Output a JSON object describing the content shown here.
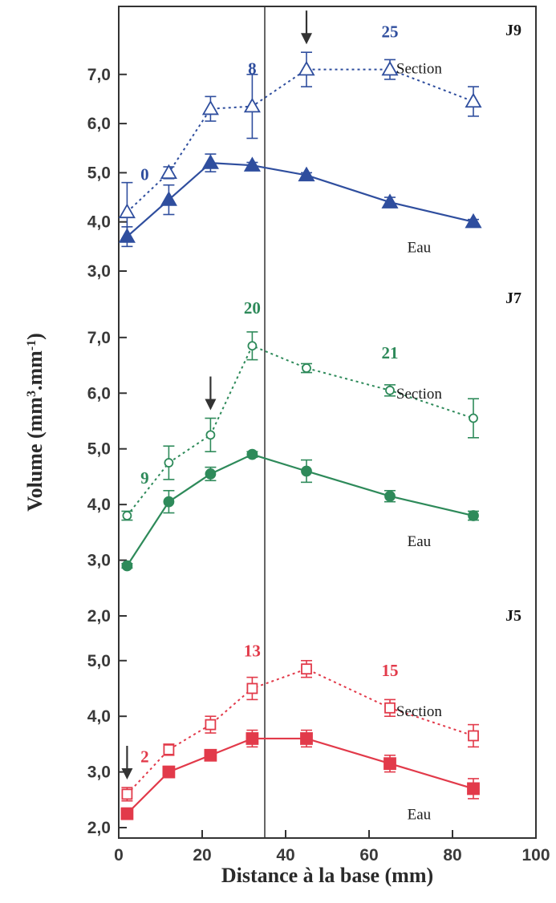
{
  "chart_data": {
    "type": "line",
    "xlabel": "Distance à la base (mm)",
    "ylabel": "Volume (mm³.mm⁻¹)",
    "ylabel_base": "Volume (mm",
    "ylabel_exp1": "3",
    "ylabel_mid": ".mm",
    "ylabel_exp2": "-1",
    "ylabel_end": ")",
    "xlim": [
      0,
      100
    ],
    "x_ticks": [
      "0",
      "20",
      "40",
      "60",
      "80",
      "100"
    ],
    "x_tick_values": [
      0,
      20,
      40,
      60,
      80,
      100
    ],
    "vertical_line_x": 35,
    "grid": false,
    "panels": [
      {
        "id": "J9",
        "color": "#2f4e9e",
        "ylim": [
          3.0,
          7.6
        ],
        "y_ticks": [
          "3,0",
          "4,0",
          "5,0",
          "6,0",
          "7,0"
        ],
        "y_tick_values": [
          3.0,
          4.0,
          5.0,
          6.0,
          7.0
        ],
        "series": [
          {
            "name": "Section",
            "marker": "triangle-open",
            "style": "dotted",
            "x": [
              2,
              12,
              22,
              32,
              45,
              65,
              85
            ],
            "y": [
              4.2,
              5.0,
              6.3,
              6.35,
              7.1,
              7.1,
              6.45
            ],
            "err": [
              0.6,
              0.12,
              0.25,
              0.65,
              0.35,
              0.2,
              0.3
            ]
          },
          {
            "name": "Eau",
            "marker": "triangle-filled",
            "style": "solid",
            "x": [
              2,
              12,
              22,
              32,
              45,
              65,
              85
            ],
            "y": [
              3.7,
              4.45,
              5.2,
              5.15,
              4.95,
              4.4,
              4.0
            ],
            "err": [
              0.2,
              0.3,
              0.18,
              0.06,
              0.05,
              0.1,
              0.05
            ]
          }
        ],
        "annotations": [
          {
            "text": "0",
            "x": 2,
            "y": 4.2
          },
          {
            "text": "8",
            "x": 32,
            "y": 6.35
          },
          {
            "text": "25",
            "x": 65,
            "y": 7.1
          }
        ],
        "arrow_x": 45
      },
      {
        "id": "J7",
        "color": "#2e8a5a",
        "ylim": [
          2.0,
          7.3
        ],
        "y_ticks": [
          "2,0",
          "3,0",
          "4,0",
          "5,0",
          "6,0",
          "7,0"
        ],
        "y_tick_values": [
          2.0,
          3.0,
          4.0,
          5.0,
          6.0,
          7.0
        ],
        "series": [
          {
            "name": "Section",
            "marker": "circle-open",
            "style": "dotted",
            "x": [
              2,
              12,
              22,
              32,
              45,
              65,
              85
            ],
            "y": [
              3.8,
              4.75,
              5.25,
              6.85,
              6.45,
              6.05,
              5.55
            ],
            "err": [
              0.08,
              0.3,
              0.3,
              0.25,
              0.08,
              0.1,
              0.35
            ]
          },
          {
            "name": "Eau",
            "marker": "circle-filled",
            "style": "solid",
            "x": [
              2,
              12,
              22,
              32,
              45,
              65,
              85
            ],
            "y": [
              2.9,
              4.05,
              4.55,
              4.9,
              4.6,
              4.15,
              3.8
            ],
            "err": [
              0.04,
              0.2,
              0.12,
              0.05,
              0.2,
              0.1,
              0.08
            ]
          }
        ],
        "annotations": [
          {
            "text": "9",
            "x": 2,
            "y": 3.8
          },
          {
            "text": "20",
            "x": 32,
            "y": 6.85
          },
          {
            "text": "21",
            "x": 65,
            "y": 6.05
          }
        ],
        "arrow_x": 22
      },
      {
        "id": "J5",
        "color": "#e23a4a",
        "ylim": [
          2.0,
          5.4
        ],
        "y_ticks": [
          "2,0",
          "3,0",
          "4,0",
          "5,0"
        ],
        "y_tick_values": [
          2.0,
          3.0,
          4.0,
          5.0
        ],
        "series": [
          {
            "name": "Section",
            "marker": "square-open",
            "style": "dotted",
            "x": [
              2,
              12,
              22,
              32,
              45,
              65,
              85
            ],
            "y": [
              2.6,
              3.4,
              3.85,
              4.5,
              4.85,
              4.15,
              3.65
            ],
            "err": [
              0.12,
              0.1,
              0.15,
              0.2,
              0.15,
              0.15,
              0.2
            ]
          },
          {
            "name": "Eau",
            "marker": "square-filled",
            "style": "solid",
            "x": [
              2,
              12,
              22,
              32,
              45,
              65,
              85
            ],
            "y": [
              2.25,
              3.0,
              3.3,
              3.6,
              3.6,
              3.15,
              2.7
            ],
            "err": [
              0.1,
              0.1,
              0.08,
              0.15,
              0.15,
              0.15,
              0.18
            ]
          }
        ],
        "annotations": [
          {
            "text": "2",
            "x": 2,
            "y": 2.6
          },
          {
            "text": "13",
            "x": 32,
            "y": 4.5
          },
          {
            "text": "15",
            "x": 65,
            "y": 4.15
          }
        ],
        "arrow_x": 2
      }
    ]
  }
}
